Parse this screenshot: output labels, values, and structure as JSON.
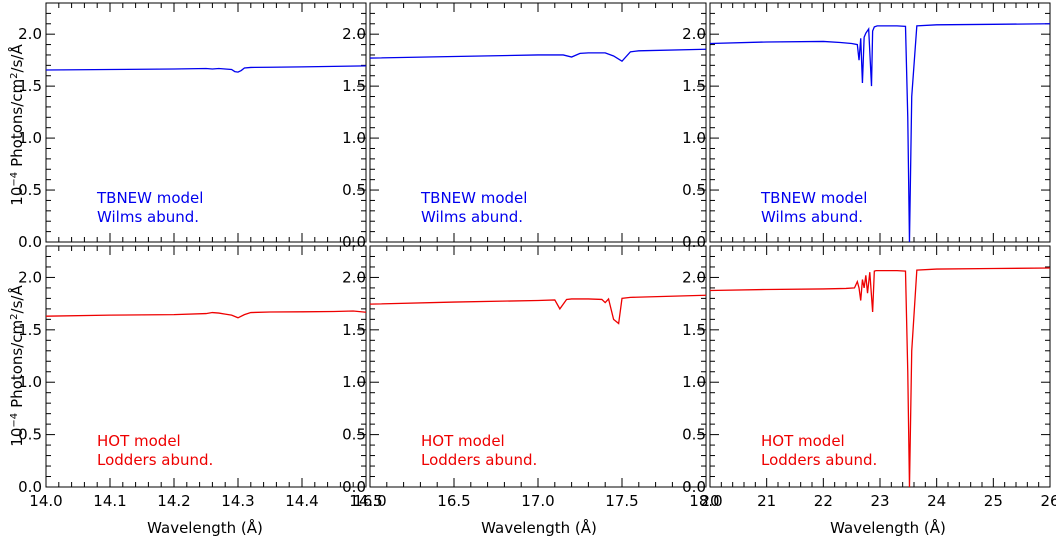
{
  "figure": {
    "ylabel_prefix": "10",
    "ylabel_exponent": "−4",
    "ylabel_rest": "Photons/cm",
    "ylabel_sq": "2",
    "ylabel_tail": "/s/Å",
    "xlabel": "Wavelength (Å)"
  },
  "chart_data": [
    {
      "type": "line",
      "row": "top",
      "col": 0,
      "xlim": [
        14.0,
        14.5
      ],
      "ylim": [
        0,
        2.3
      ],
      "xticks": [
        "14.0",
        "14.1",
        "14.2",
        "14.3",
        "14.4",
        "14.5"
      ],
      "yticks": [
        "0.0",
        "0.5",
        "1.0",
        "1.5",
        "2.0"
      ],
      "color": "#0000ee",
      "annotation": [
        "TBNEW model",
        "Wilms abund."
      ],
      "series": [
        {
          "x": [
            14.0,
            14.1,
            14.2,
            14.25,
            14.26,
            14.27,
            14.28,
            14.29,
            14.295,
            14.3,
            14.305,
            14.31,
            14.32,
            14.35,
            14.4,
            14.45,
            14.5
          ],
          "y": [
            1.655,
            1.66,
            1.665,
            1.67,
            1.665,
            1.67,
            1.665,
            1.66,
            1.64,
            1.635,
            1.65,
            1.675,
            1.68,
            1.682,
            1.685,
            1.69,
            1.695
          ]
        }
      ]
    },
    {
      "type": "line",
      "row": "top",
      "col": 1,
      "xlim": [
        16.0,
        18.0
      ],
      "ylim": [
        0,
        2.3
      ],
      "xticks": [
        "16.0",
        "16.5",
        "17.0",
        "17.5",
        "18.0"
      ],
      "yticks": [
        "0.0",
        "0.5",
        "1.0",
        "1.5",
        "2.0"
      ],
      "color": "#0000ee",
      "annotation": [
        "TBNEW model",
        "Wilms abund."
      ],
      "series": [
        {
          "x": [
            16.0,
            16.5,
            17.0,
            17.15,
            17.2,
            17.25,
            17.3,
            17.4,
            17.45,
            17.5,
            17.55,
            17.6,
            18.0
          ],
          "y": [
            1.77,
            1.785,
            1.8,
            1.8,
            1.78,
            1.815,
            1.82,
            1.82,
            1.79,
            1.74,
            1.83,
            1.84,
            1.855
          ]
        }
      ]
    },
    {
      "type": "line",
      "row": "top",
      "col": 2,
      "xlim": [
        20,
        26
      ],
      "ylim": [
        0,
        2.3
      ],
      "xticks": [
        "20",
        "21",
        "22",
        "23",
        "24",
        "25",
        "26"
      ],
      "yticks": [
        "0.0",
        "0.5",
        "1.0",
        "1.5",
        "2.0"
      ],
      "color": "#0000ee",
      "annotation": [
        "TBNEW model",
        "Wilms abund."
      ],
      "series": [
        {
          "x": [
            20,
            21,
            22,
            22.3,
            22.5,
            22.6,
            22.63,
            22.66,
            22.69,
            22.72,
            22.75,
            22.8,
            22.85,
            22.87,
            22.9,
            22.95,
            23.3,
            23.45,
            23.49,
            23.52,
            23.56,
            23.65,
            24,
            25,
            26
          ],
          "y": [
            1.91,
            1.925,
            1.93,
            1.92,
            1.91,
            1.9,
            1.75,
            1.96,
            1.53,
            1.97,
            2.01,
            2.05,
            1.5,
            2.03,
            2.07,
            2.08,
            2.08,
            2.075,
            1.2,
            0.0,
            1.4,
            2.08,
            2.09,
            2.095,
            2.1
          ]
        }
      ]
    },
    {
      "type": "line",
      "row": "bottom",
      "col": 0,
      "xlim": [
        14.0,
        14.5
      ],
      "ylim": [
        0,
        2.3
      ],
      "xticks": [
        "14.0",
        "14.1",
        "14.2",
        "14.3",
        "14.4",
        "14.5"
      ],
      "yticks": [
        "0.0",
        "0.5",
        "1.0",
        "1.5",
        "2.0"
      ],
      "color": "#ee0000",
      "annotation": [
        "HOT model",
        "Lodders abund."
      ],
      "series": [
        {
          "x": [
            14.0,
            14.1,
            14.2,
            14.25,
            14.26,
            14.27,
            14.28,
            14.29,
            14.3,
            14.31,
            14.32,
            14.35,
            14.4,
            14.45,
            14.48,
            14.5
          ],
          "y": [
            1.63,
            1.64,
            1.645,
            1.655,
            1.665,
            1.66,
            1.65,
            1.64,
            1.615,
            1.645,
            1.665,
            1.67,
            1.672,
            1.675,
            1.68,
            1.668
          ]
        }
      ]
    },
    {
      "type": "line",
      "row": "bottom",
      "col": 1,
      "xlim": [
        16.0,
        18.0
      ],
      "ylim": [
        0,
        2.3
      ],
      "xticks": [
        "16.0",
        "16.5",
        "17.0",
        "17.5",
        "18.0"
      ],
      "yticks": [
        "0.0",
        "0.5",
        "1.0",
        "1.5",
        "2.0"
      ],
      "color": "#ee0000",
      "annotation": [
        "HOT model",
        "Lodders abund."
      ],
      "series": [
        {
          "x": [
            16.0,
            16.5,
            17.0,
            17.1,
            17.13,
            17.17,
            17.2,
            17.3,
            17.38,
            17.4,
            17.42,
            17.45,
            17.48,
            17.5,
            17.55,
            18.0
          ],
          "y": [
            1.745,
            1.765,
            1.78,
            1.785,
            1.7,
            1.79,
            1.795,
            1.795,
            1.79,
            1.76,
            1.795,
            1.6,
            1.56,
            1.8,
            1.81,
            1.83
          ]
        }
      ]
    },
    {
      "type": "line",
      "row": "bottom",
      "col": 2,
      "xlim": [
        20,
        26
      ],
      "ylim": [
        0,
        2.3
      ],
      "xticks": [
        "20",
        "21",
        "22",
        "23",
        "24",
        "25",
        "26"
      ],
      "yticks": [
        "0.0",
        "0.5",
        "1.0",
        "1.5",
        "2.0"
      ],
      "color": "#ee0000",
      "annotation": [
        "HOT model",
        "Lodders abund."
      ],
      "series": [
        {
          "x": [
            20,
            21,
            22,
            22.4,
            22.55,
            22.6,
            22.63,
            22.66,
            22.69,
            22.72,
            22.75,
            22.78,
            22.82,
            22.87,
            22.9,
            22.93,
            23.3,
            23.45,
            23.49,
            23.52,
            23.56,
            23.65,
            24,
            25,
            26
          ],
          "y": [
            1.875,
            1.885,
            1.89,
            1.895,
            1.9,
            1.96,
            1.9,
            1.78,
            1.98,
            1.9,
            2.02,
            1.85,
            2.05,
            1.67,
            2.06,
            2.065,
            2.065,
            2.06,
            1.1,
            0.0,
            1.3,
            2.07,
            2.08,
            2.085,
            2.09
          ]
        }
      ]
    }
  ]
}
